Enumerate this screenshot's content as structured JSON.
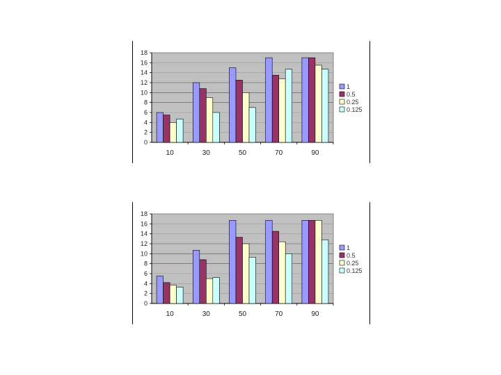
{
  "chart_data": [
    {
      "type": "bar",
      "categories": [
        "10",
        "30",
        "50",
        "70",
        "90"
      ],
      "ylim": [
        0,
        18
      ],
      "yticks": [
        "0",
        "2",
        "4",
        "6",
        "8",
        "10",
        "12",
        "14",
        "16",
        "18"
      ],
      "grid": true,
      "legend_position": "right",
      "series": [
        {
          "name": "1",
          "values": [
            6,
            12,
            15,
            17,
            17
          ],
          "color": "#9999ff"
        },
        {
          "name": "0.5",
          "values": [
            5.5,
            10.8,
            12.5,
            13.5,
            17
          ],
          "color": "#993366"
        },
        {
          "name": "0.25",
          "values": [
            4,
            9,
            10,
            12.8,
            15.5
          ],
          "color": "#ffffcc"
        },
        {
          "name": "0.125",
          "values": [
            4.7,
            6,
            7,
            14.7,
            14.7
          ],
          "color": "#ccffff"
        }
      ],
      "plot_background": "#c0c0c0"
    },
    {
      "type": "bar",
      "categories": [
        "10",
        "30",
        "50",
        "70",
        "90"
      ],
      "ylim": [
        0,
        18
      ],
      "yticks": [
        "0",
        "2",
        "4",
        "6",
        "8",
        "10",
        "12",
        "14",
        "16",
        "18"
      ],
      "grid": true,
      "legend_position": "right",
      "series": [
        {
          "name": "1",
          "values": [
            5.5,
            10.7,
            16.7,
            16.7,
            16.7
          ],
          "color": "#9999ff"
        },
        {
          "name": "0.5",
          "values": [
            4.2,
            8.8,
            13.3,
            14.5,
            16.7
          ],
          "color": "#993366"
        },
        {
          "name": "0.25",
          "values": [
            3.7,
            5,
            12,
            12.4,
            16.7
          ],
          "color": "#ffffcc"
        },
        {
          "name": "0.125",
          "values": [
            3.3,
            5.2,
            9.3,
            10,
            12.8
          ],
          "color": "#ccffff"
        }
      ],
      "plot_background": "#c0c0c0"
    }
  ]
}
